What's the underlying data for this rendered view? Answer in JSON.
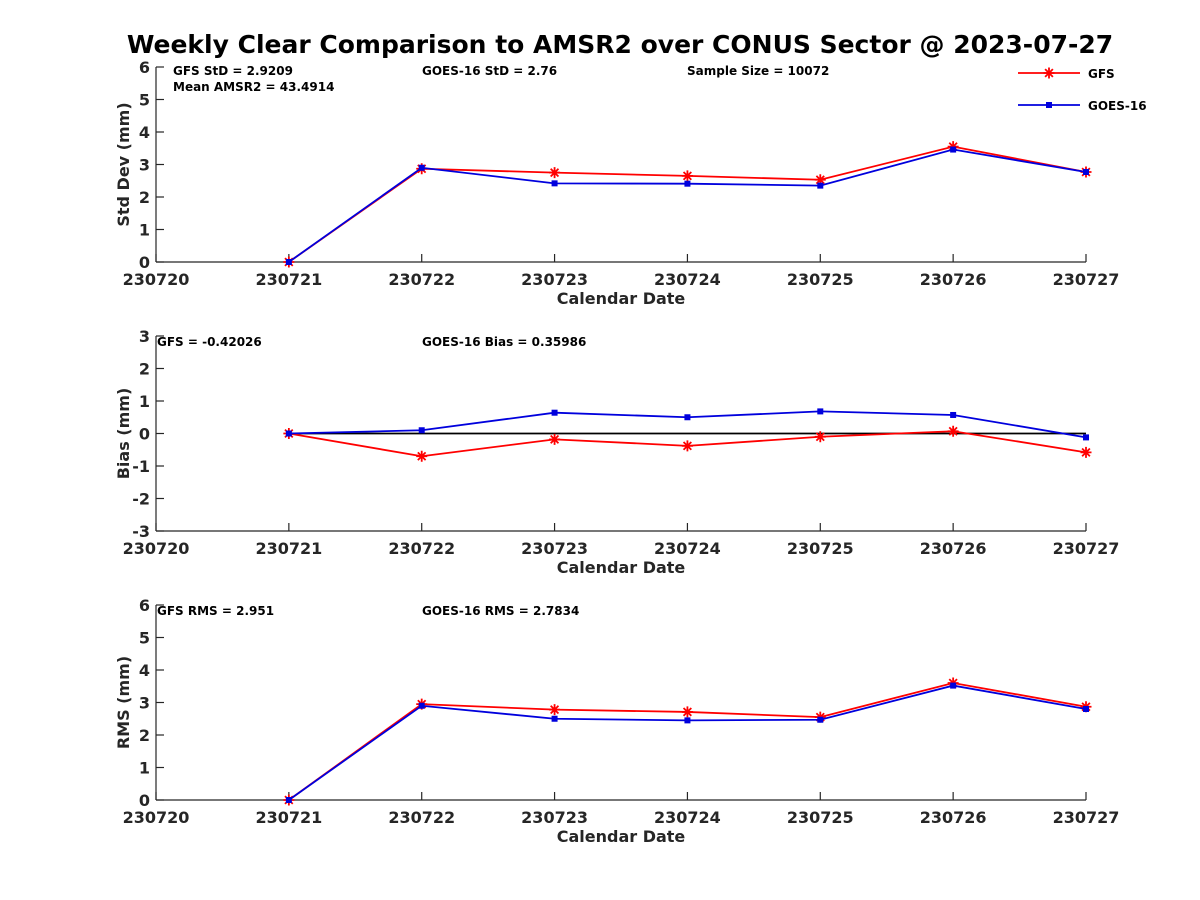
{
  "title": "Weekly Clear Comparison to AMSR2 over CONUS Sector @ 2023-07-27",
  "colors": {
    "gfs": "#ff0000",
    "goes": "#0000dd",
    "axis": "#262626",
    "zero_line": "#000000"
  },
  "legend": {
    "gfs": "GFS",
    "goes": "GOES-16"
  },
  "chart_data": [
    {
      "type": "line",
      "xlabel": "Calendar Date",
      "ylabel": "Std Dev (mm)",
      "categories": [
        "230720",
        "230721",
        "230722",
        "230723",
        "230724",
        "230725",
        "230726",
        "230727"
      ],
      "ylim": [
        0,
        6
      ],
      "yticks": [
        "0",
        "1",
        "2",
        "3",
        "4",
        "5",
        "6"
      ],
      "zero_line": false,
      "annotations": [
        "GFS StD = 2.9209",
        "Mean AMSR2 = 43.4914",
        "GOES-16 StD = 2.76",
        "Sample Size = 10072"
      ],
      "series": [
        {
          "name": "GFS",
          "values": [
            null,
            0.0,
            2.87,
            2.75,
            2.65,
            2.53,
            3.55,
            2.77
          ]
        },
        {
          "name": "GOES-16",
          "values": [
            null,
            0.0,
            2.9,
            2.42,
            2.41,
            2.35,
            3.46,
            2.77
          ]
        }
      ]
    },
    {
      "type": "line",
      "xlabel": "Calendar Date",
      "ylabel": "Bias (mm)",
      "categories": [
        "230720",
        "230721",
        "230722",
        "230723",
        "230724",
        "230725",
        "230726",
        "230727"
      ],
      "ylim": [
        -3,
        3
      ],
      "yticks": [
        "-3",
        "-2",
        "-1",
        "0",
        "1",
        "2",
        "3"
      ],
      "zero_line": true,
      "annotations": [
        "GFS = -0.42026",
        "GOES-16 Bias  = 0.35986"
      ],
      "series": [
        {
          "name": "GFS",
          "values": [
            null,
            0.0,
            -0.7,
            -0.18,
            -0.38,
            -0.1,
            0.07,
            -0.58
          ]
        },
        {
          "name": "GOES-16",
          "values": [
            null,
            0.0,
            0.1,
            0.64,
            0.5,
            0.68,
            0.57,
            -0.12
          ]
        }
      ]
    },
    {
      "type": "line",
      "xlabel": "Calendar Date",
      "ylabel": "RMS (mm)",
      "categories": [
        "230720",
        "230721",
        "230722",
        "230723",
        "230724",
        "230725",
        "230726",
        "230727"
      ],
      "ylim": [
        0,
        6
      ],
      "yticks": [
        "0",
        "1",
        "2",
        "3",
        "4",
        "5",
        "6"
      ],
      "zero_line": false,
      "annotations": [
        "GFS RMS = 2.951",
        "GOES-16 RMS = 2.7834"
      ],
      "series": [
        {
          "name": "GFS",
          "values": [
            null,
            0.0,
            2.95,
            2.78,
            2.71,
            2.55,
            3.6,
            2.87
          ]
        },
        {
          "name": "GOES-16",
          "values": [
            null,
            0.0,
            2.9,
            2.5,
            2.45,
            2.47,
            3.52,
            2.8
          ]
        }
      ]
    }
  ]
}
